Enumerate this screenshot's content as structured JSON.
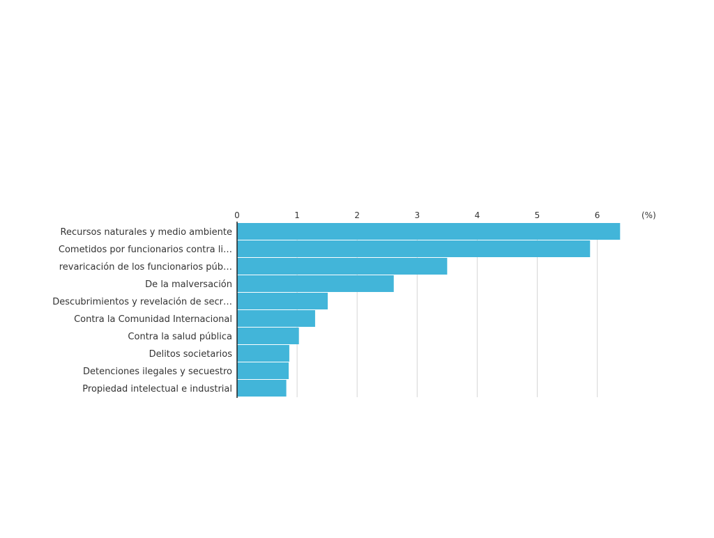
{
  "chart_data": {
    "type": "bar",
    "orientation": "horizontal",
    "unit_label": "(%)",
    "xlim": [
      0,
      6.8
    ],
    "ticks": [
      "0",
      "1",
      "2",
      "3",
      "4",
      "5",
      "6"
    ],
    "grid": true,
    "categories": [
      "Recursos naturales y medio ambiente",
      "Cometidos por funcionarios contra li…",
      "revaricación de los funcionarios púb…",
      "De la malversación",
      "Descubrimientos y revelación de secr…",
      "Contra la Comunidad Internacional",
      "Contra la salud pública",
      "Delitos societarios",
      "Detenciones ilegales y secuestro",
      "Propiedad intelectual e industrial"
    ],
    "values": [
      6.38,
      5.88,
      3.5,
      2.61,
      1.51,
      1.3,
      1.03,
      0.87,
      0.86,
      0.82
    ]
  },
  "colors": {
    "bar": "#42b5d9",
    "grid": "#d6d6d6",
    "axis": "#222222",
    "text": "#333333"
  }
}
